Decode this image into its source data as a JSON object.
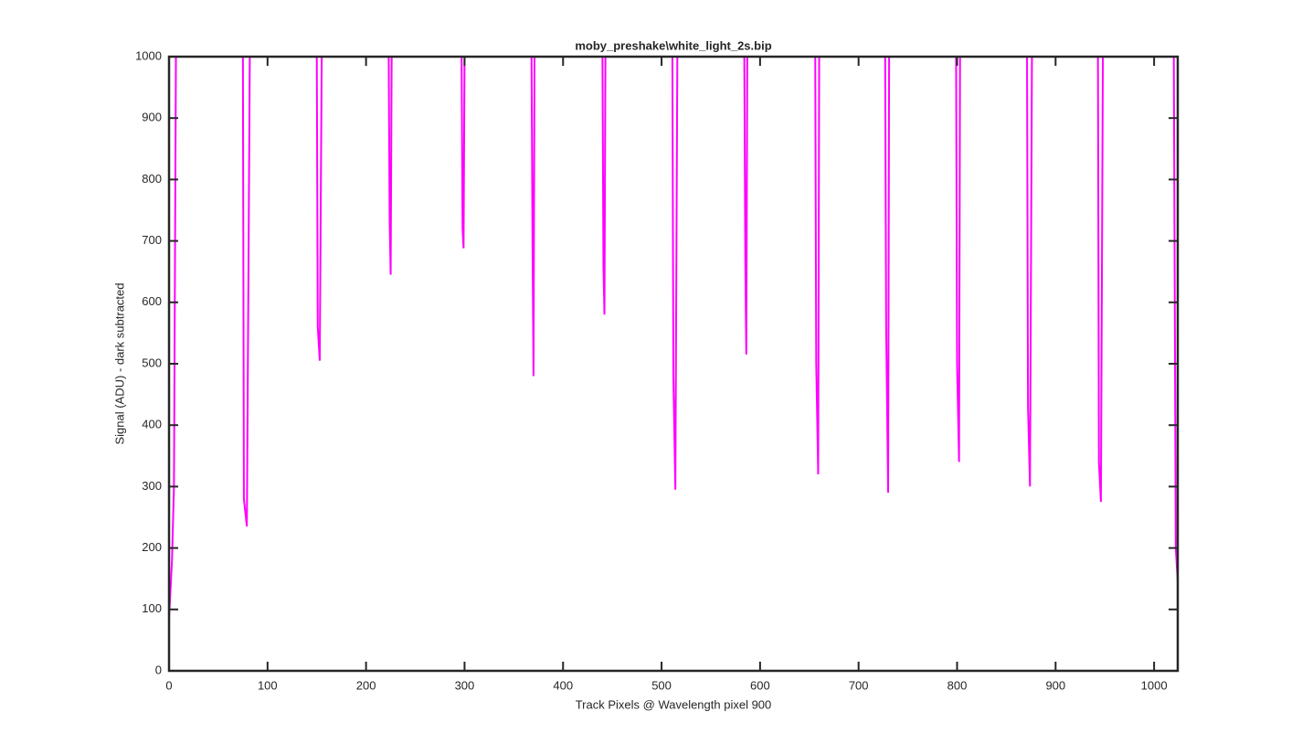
{
  "chart_data": {
    "type": "line",
    "title": "moby_preshake\\white_light_2s.bip",
    "xlabel": "Track Pixels @ Wavelength pixel 900",
    "ylabel": "Signal (ADU) - dark subtracted",
    "color": "#ff00ff",
    "x": [
      0,
      3,
      5,
      7,
      75,
      76,
      79,
      82,
      150,
      151,
      153,
      155,
      223,
      224,
      225,
      226,
      297,
      298,
      299,
      300,
      368,
      369,
      370,
      371,
      440,
      441,
      442,
      443,
      511,
      512,
      514,
      516,
      584,
      585,
      586,
      587,
      656,
      657,
      659,
      660,
      727,
      728,
      730,
      731,
      799,
      800,
      802,
      803,
      871,
      872,
      874,
      876,
      943,
      944,
      946,
      948,
      1020,
      1022,
      1024
    ],
    "values": [
      85,
      180,
      300,
      1000,
      1000,
      280,
      235,
      1000,
      1000,
      560,
      505,
      1000,
      1000,
      730,
      645,
      1000,
      1000,
      720,
      688,
      1000,
      1000,
      700,
      480,
      1000,
      1000,
      660,
      580,
      1000,
      1000,
      480,
      295,
      1000,
      1000,
      670,
      515,
      1000,
      1000,
      500,
      320,
      1000,
      1000,
      560,
      290,
      1000,
      1000,
      500,
      340,
      1000,
      1000,
      430,
      300,
      1000,
      1000,
      340,
      275,
      1000,
      1000,
      200,
      145
    ],
    "xlim": [
      0,
      1024
    ],
    "ylim": [
      0,
      1000
    ],
    "xticks": [
      0,
      100,
      200,
      300,
      400,
      500,
      600,
      700,
      800,
      900,
      1000
    ],
    "yticks": [
      0,
      100,
      200,
      300,
      400,
      500,
      600,
      700,
      800,
      900,
      1000
    ],
    "grid": false
  }
}
